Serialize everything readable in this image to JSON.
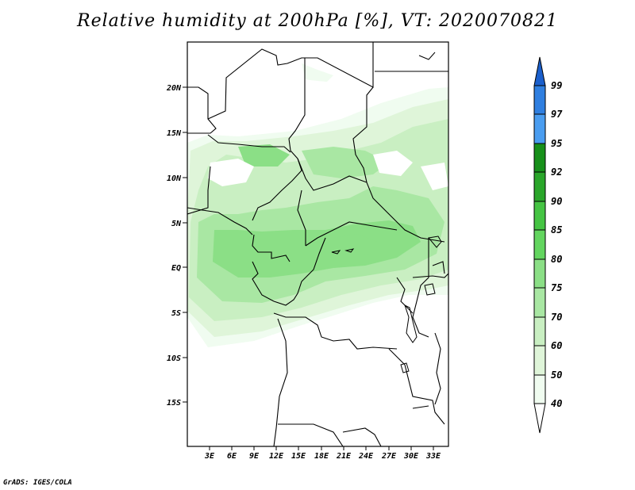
{
  "title": "Relative humidity at 200hPa [%], VT: 2020070821",
  "credit": "GrADS: IGES/COLA",
  "map": {
    "lat_labels": [
      "20N",
      "15N",
      "10N",
      "5N",
      "EQ",
      "5S",
      "10S",
      "15S"
    ],
    "lon_labels": [
      "3E",
      "6E",
      "9E",
      "12E",
      "15E",
      "18E",
      "21E",
      "24E",
      "27E",
      "30E",
      "33E"
    ]
  },
  "colorbar": {
    "labels": [
      "99",
      "97",
      "95",
      "92",
      "90",
      "85",
      "80",
      "75",
      "70",
      "60",
      "50",
      "40"
    ],
    "colors": {
      "c40": "#f0fcf0",
      "c50": "#dff5d9",
      "c60": "#c9efc2",
      "c70": "#a9e7a3",
      "c75": "#8bdf86",
      "c80": "#63d55f",
      "c85": "#45c443",
      "c90": "#2aa62a",
      "c92": "#17901a",
      "c95": "#4a9df0",
      "c97": "#2f7fe0",
      "c99": "#1a5fcc"
    }
  }
}
